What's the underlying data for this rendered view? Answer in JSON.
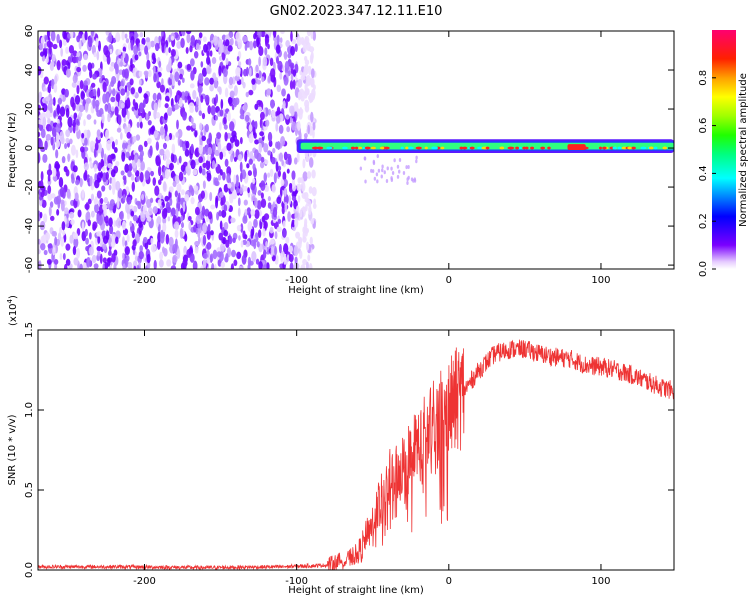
{
  "title": "GN02.2023.347.12.11.E10",
  "chart_data": [
    {
      "type": "heatmap",
      "title": "GN02.2023.347.12.11.E10",
      "xlabel": "Height of straight line (km)",
      "ylabel": "Frequency (Hz)",
      "xlim": [
        -270,
        148
      ],
      "ylim": [
        -62,
        60
      ],
      "xticks": [
        "-200",
        "-100",
        "0",
        "100"
      ],
      "xtick_values": [
        -200,
        -100,
        0,
        100
      ],
      "yticks": [
        "60",
        "40",
        "20",
        "0",
        "-20",
        "-40",
        "-60"
      ],
      "ytick_values": [
        60,
        40,
        20,
        0,
        -20,
        -40,
        -60
      ],
      "noise_region_x": [
        -270,
        -88
      ],
      "signal_band": {
        "x_start": -100,
        "x_end": 148,
        "center_hz": 1,
        "half_width_hz": 3
      },
      "colorbar": {
        "label": "Normalized spectral amplitude",
        "range": [
          0,
          1
        ],
        "ticks": [
          "0.0",
          "0.2",
          "0.4",
          "0.6",
          "0.8"
        ],
        "tick_values": [
          0,
          0.2,
          0.4,
          0.6,
          0.8
        ]
      },
      "grid": false
    },
    {
      "type": "line",
      "xlabel": "Height of straight line (km)",
      "ylabel": "SNR (10 * v/v)",
      "y_multiplier": "(x10",
      "y_multiplier_exp": "4",
      "y_multiplier_close": ")",
      "xlim": [
        -270,
        148
      ],
      "ylim": [
        0,
        1.5
      ],
      "xticks": [
        "-200",
        "-100",
        "0",
        "100"
      ],
      "xtick_values": [
        -200,
        -100,
        0,
        100
      ],
      "yticks": [
        "0.0",
        "0.5",
        "1.0",
        "1.5"
      ],
      "ytick_values": [
        0,
        0.5,
        1.0,
        1.5
      ],
      "color": "#ee3333",
      "series": [
        {
          "x": [
            -270,
            -220,
            -160,
            -110,
            -80,
            -70,
            -60,
            -55,
            -50,
            -45,
            -40,
            -35,
            -30,
            -25,
            -20,
            -15,
            -10,
            -5,
            0,
            10,
            20,
            30,
            40,
            50,
            60,
            70,
            80,
            90,
            100,
            110,
            120,
            130,
            140,
            148
          ],
          "y": [
            0.02,
            0.02,
            0.015,
            0.02,
            0.03,
            0.06,
            0.1,
            0.2,
            0.3,
            0.45,
            0.55,
            0.6,
            0.65,
            0.72,
            0.78,
            0.85,
            0.9,
            0.95,
            1.0,
            1.12,
            1.25,
            1.35,
            1.38,
            1.38,
            1.35,
            1.33,
            1.32,
            1.28,
            1.27,
            1.25,
            1.22,
            1.18,
            1.14,
            1.12
          ]
        }
      ],
      "grid": false
    }
  ]
}
